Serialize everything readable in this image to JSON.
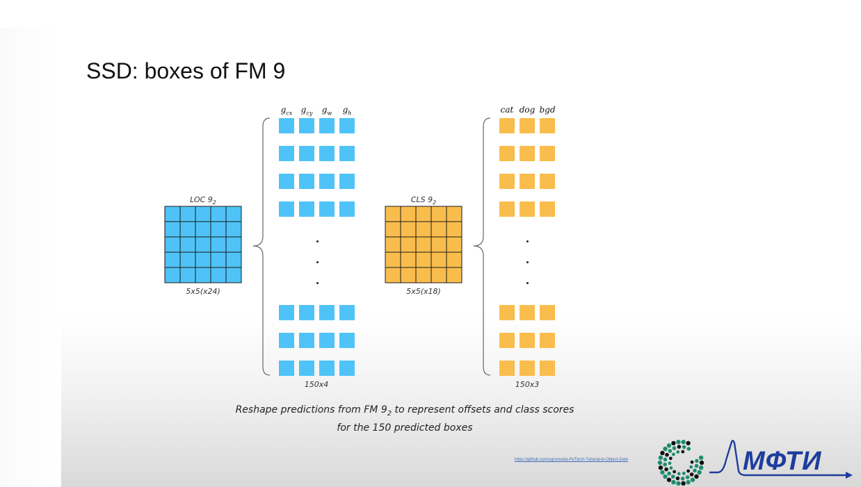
{
  "slide": {
    "title": "SSD: boxes of FM 9"
  },
  "loc": {
    "label_main": "LOC 9",
    "label_sub": "2",
    "dims": "5x5(x24)",
    "color": "#4fc3f7",
    "headers": [
      {
        "main": "g",
        "sub": "cx"
      },
      {
        "main": "g",
        "sub": "cy"
      },
      {
        "main": "g",
        "sub": "w"
      },
      {
        "main": "g",
        "sub": "h"
      }
    ],
    "output_dims": "150x4"
  },
  "cls": {
    "label_main": "CLS 9",
    "label_sub": "2",
    "dims": "5x5(x18)",
    "color": "#f9bd4d",
    "headers": [
      {
        "main": "cat",
        "sub": ""
      },
      {
        "main": "dog",
        "sub": ""
      },
      {
        "main": "bgd",
        "sub": ""
      }
    ],
    "output_dims": "150x3"
  },
  "footer": {
    "line1_pre": "Reshape predictions from FM 9",
    "line1_sub": "2",
    "line1_post": " to represent offsets and class scores",
    "line2": "for the 150 predicted boxes"
  },
  "source_link": "https://github.com/sgrvinod/a-PyTorch-Tutorial-to-Object-Dete",
  "logo": {
    "text": "МФТИ",
    "color": "#1d3d9c",
    "ring_color": "#1e8c6e"
  }
}
